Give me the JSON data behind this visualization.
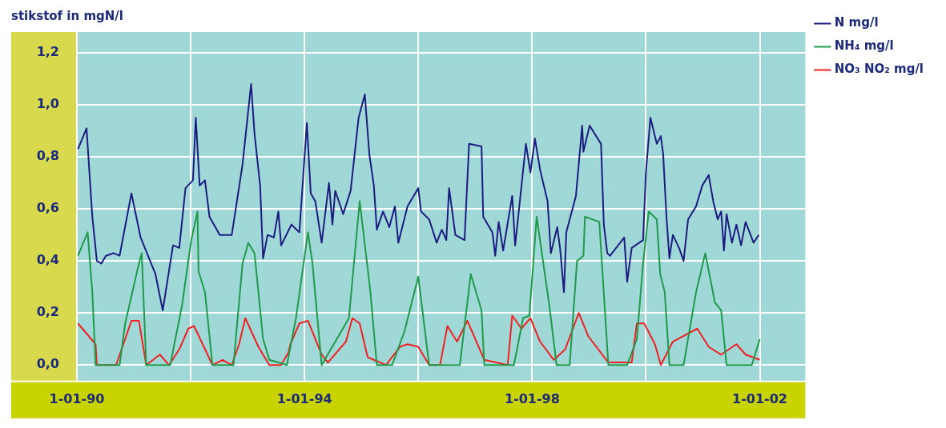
{
  "chart_data": {
    "type": "line",
    "ylabel": "stikstof in mgN/l",
    "xlim": [
      "1990-01-01",
      "2002-10-20"
    ],
    "ylim": [
      -0.06,
      1.28
    ],
    "xticks": [
      {
        "value": "1990-01-01",
        "label": "1-01-90"
      },
      {
        "value": "1992-01-01",
        "label": null
      },
      {
        "value": "1994-01-01",
        "label": "1-01-94"
      },
      {
        "value": "1996-01-01",
        "label": null
      },
      {
        "value": "1998-01-01",
        "label": "1-01-98"
      },
      {
        "value": "2000-01-01",
        "label": null
      },
      {
        "value": "2002-01-01",
        "label": "1-01-02"
      }
    ],
    "yticks": [
      {
        "value": 0,
        "label": "0,0"
      },
      {
        "value": 0.2,
        "label": "0,2"
      },
      {
        "value": 0.4,
        "label": "0,4"
      },
      {
        "value": 0.6,
        "label": "0,6"
      },
      {
        "value": 0.8,
        "label": "0,8"
      },
      {
        "value": 1.0,
        "label": "1,0"
      },
      {
        "value": 1.2,
        "label": "1,2"
      }
    ],
    "grid": true,
    "legend": "top right",
    "marker": "none",
    "line_style": "solid",
    "series": [
      {
        "name": "N mg/l",
        "color": "#1c1c80",
        "x": [
          "1990-01-08",
          "1990-03-04",
          "1990-04-10",
          "1990-05-09",
          "1990-06-07",
          "1990-07-06",
          "1990-08-23",
          "1990-10-02",
          "1990-12-17",
          "1991-02-14",
          "1991-05-20",
          "1991-07-06",
          "1991-09-10",
          "1991-10-20",
          "1991-11-29",
          "1992-01-16",
          "1992-02-03",
          "1992-02-28",
          "1992-04-02",
          "1992-05-01",
          "1992-07-06",
          "1992-09-21",
          "1992-11-29",
          "1993-01-23",
          "1993-02-14",
          "1993-03-22",
          "1993-04-10",
          "1993-05-09",
          "1993-06-18",
          "1993-07-17",
          "1993-08-04",
          "1993-10-09",
          "1993-11-29",
          "1994-01-16",
          "1994-02-10",
          "1994-03-11",
          "1994-04-21",
          "1994-06-07",
          "1994-06-29",
          "1994-07-17",
          "1994-09-06",
          "1994-10-24",
          "1994-12-14",
          "1995-01-23",
          "1995-02-21",
          "1995-03-22",
          "1995-04-10",
          "1995-05-20",
          "1995-06-29",
          "1995-08-04",
          "1995-08-26",
          "1995-10-24",
          "1996-01-01",
          "1996-01-19",
          "1996-03-11",
          "1996-04-28",
          "1996-05-31",
          "1996-06-29",
          "1996-07-17",
          "1996-08-26",
          "1996-10-24",
          "1996-11-22",
          "1997-02-10",
          "1997-02-21",
          "1997-04-21",
          "1997-05-09",
          "1997-05-31",
          "1997-06-29",
          "1997-08-26",
          "1997-09-14",
          "1997-11-22",
          "1997-12-21",
          "1998-01-19",
          "1998-02-21",
          "1998-04-10",
          "1998-05-01",
          "1998-06-11",
          "1998-06-29",
          "1998-07-24",
          "1998-08-08",
          "1998-10-09",
          "1998-11-18",
          "1998-11-26",
          "1999-01-05",
          "1999-03-19",
          "1999-04-06",
          "1999-04-28",
          "1999-05-16",
          "1999-08-15",
          "1999-09-03",
          "1999-10-02",
          "1999-12-14",
          "2000-01-01",
          "2000-01-30",
          "2000-03-11",
          "2000-04-06",
          "2000-04-21",
          "2000-05-12",
          "2000-05-31",
          "2000-06-22",
          "2000-08-01",
          "2000-08-30",
          "2000-09-28",
          "2000-11-18",
          "2000-12-28",
          "2001-02-07",
          "2001-03-08",
          "2001-04-06",
          "2001-04-28",
          "2001-05-16",
          "2001-06-02",
          "2001-07-06",
          "2001-08-04",
          "2001-09-03",
          "2001-10-02",
          "2001-11-22",
          "2001-12-25"
        ],
        "values": [
          0.83,
          0.91,
          0.57,
          0.4,
          0.39,
          0.42,
          0.43,
          0.42,
          0.66,
          0.49,
          0.35,
          0.21,
          0.46,
          0.45,
          0.68,
          0.71,
          0.95,
          0.69,
          0.71,
          0.57,
          0.5,
          0.5,
          0.77,
          1.08,
          0.89,
          0.69,
          0.41,
          0.5,
          0.49,
          0.59,
          0.46,
          0.54,
          0.51,
          0.93,
          0.66,
          0.63,
          0.47,
          0.7,
          0.54,
          0.67,
          0.58,
          0.67,
          0.95,
          1.04,
          0.81,
          0.69,
          0.52,
          0.59,
          0.53,
          0.61,
          0.47,
          0.61,
          0.68,
          0.59,
          0.56,
          0.47,
          0.52,
          0.48,
          0.68,
          0.5,
          0.48,
          0.85,
          0.84,
          0.57,
          0.51,
          0.42,
          0.55,
          0.44,
          0.65,
          0.46,
          0.85,
          0.74,
          0.87,
          0.75,
          0.63,
          0.43,
          0.53,
          0.45,
          0.28,
          0.51,
          0.65,
          0.92,
          0.82,
          0.92,
          0.85,
          0.54,
          0.43,
          0.42,
          0.49,
          0.32,
          0.45,
          0.48,
          0.74,
          0.95,
          0.85,
          0.88,
          0.81,
          0.57,
          0.41,
          0.5,
          0.45,
          0.4,
          0.56,
          0.61,
          0.69,
          0.73,
          0.63,
          0.56,
          0.59,
          0.44,
          0.58,
          0.47,
          0.54,
          0.46,
          0.55,
          0.47,
          0.5
        ]
      },
      {
        "name": "NH₄ mg/l",
        "color": "#1e9a4a",
        "x": [
          "1990-01-08",
          "1990-03-11",
          "1990-04-10",
          "1990-05-01",
          "1990-10-02",
          "1990-11-07",
          "1991-02-03",
          "1991-02-21",
          "1991-03-22",
          "1991-08-23",
          "1991-11-07",
          "1992-01-05",
          "1992-02-14",
          "1992-02-21",
          "1992-04-02",
          "1992-05-20",
          "1992-10-02",
          "1992-11-29",
          "1993-01-05",
          "1993-02-14",
          "1993-04-10",
          "1993-05-20",
          "1993-09-10",
          "1993-11-07",
          "1994-01-23",
          "1994-02-21",
          "1994-04-21",
          "1994-10-13",
          "1994-12-21",
          "1995-02-28",
          "1995-04-10",
          "1995-07-17",
          "1995-10-05",
          "1996-01-01",
          "1996-03-11",
          "1996-09-24",
          "1996-12-03",
          "1997-02-10",
          "1997-02-28",
          "1997-09-06",
          "1997-11-04",
          "1997-12-14",
          "1998-01-30",
          "1998-04-21",
          "1998-06-07",
          "1998-08-30",
          "1998-10-16",
          "1998-11-26",
          "1998-12-06",
          "1999-03-08",
          "1999-05-05",
          "1999-09-03",
          "1999-11-04",
          "1999-12-14",
          "2000-01-19",
          "2000-03-11",
          "2000-04-02",
          "2000-05-01",
          "2000-05-31",
          "2000-08-30",
          "2000-11-18",
          "2001-01-16",
          "2001-03-19",
          "2001-04-28",
          "2001-06-02",
          "2001-11-11",
          "2002-01-01"
        ],
        "values": [
          0.42,
          0.51,
          0.28,
          0.0,
          0.0,
          0.16,
          0.39,
          0.43,
          0.0,
          0.0,
          0.23,
          0.48,
          0.59,
          0.36,
          0.28,
          0.0,
          0.0,
          0.39,
          0.47,
          0.43,
          0.1,
          0.02,
          0.0,
          0.18,
          0.51,
          0.39,
          0.0,
          0.18,
          0.63,
          0.28,
          0.0,
          0.0,
          0.13,
          0.34,
          0.0,
          0.0,
          0.35,
          0.21,
          0.0,
          0.0,
          0.18,
          0.19,
          0.57,
          0.23,
          0.0,
          0.0,
          0.4,
          0.42,
          0.57,
          0.55,
          0.0,
          0.0,
          0.1,
          0.39,
          0.59,
          0.56,
          0.35,
          0.28,
          0.0,
          0.0,
          0.28,
          0.43,
          0.24,
          0.21,
          0.0,
          0.0,
          0.1
        ]
      },
      {
        "name": "NO₃ NO₂ mg/l",
        "color": "#ee2222",
        "x": [
          "1990-01-08",
          "1990-05-01",
          "1990-05-09",
          "1990-09-10",
          "1990-12-17",
          "1991-02-03",
          "1991-03-22",
          "1991-06-18",
          "1991-08-15",
          "1991-10-20",
          "1991-12-17",
          "1992-01-23",
          "1992-05-20",
          "1992-07-24",
          "1992-09-21",
          "1992-11-07",
          "1992-12-17",
          "1993-03-11",
          "1993-05-20",
          "1993-08-04",
          "1993-09-21",
          "1993-10-02",
          "1993-11-29",
          "1994-01-23",
          "1994-04-21",
          "1994-05-31",
          "1994-09-24",
          "1994-11-04",
          "1994-12-21",
          "1995-02-10",
          "1995-06-07",
          "1995-09-06",
          "1995-10-24",
          "1996-01-01",
          "1996-03-11",
          "1996-05-20",
          "1996-07-06",
          "1996-09-06",
          "1996-11-11",
          "1997-02-28",
          "1997-07-28",
          "1997-08-26",
          "1997-10-24",
          "1997-12-21",
          "1998-02-21",
          "1998-05-20",
          "1998-08-01",
          "1998-10-27",
          "1998-12-28",
          "1999-05-05",
          "1999-10-02",
          "1999-11-04",
          "1999-12-21",
          "2000-02-28",
          "2000-04-06",
          "2000-06-22",
          "2000-11-26",
          "2001-02-07",
          "2001-04-28",
          "2001-08-04",
          "2001-10-02",
          "2002-01-01"
        ],
        "values": [
          0.16,
          0.08,
          0.0,
          0.0,
          0.17,
          0.17,
          0.0,
          0.04,
          0.0,
          0.06,
          0.14,
          0.15,
          0.0,
          0.02,
          0.0,
          0.08,
          0.18,
          0.07,
          0.0,
          0.0,
          0.05,
          0.08,
          0.16,
          0.17,
          0.04,
          0.01,
          0.09,
          0.18,
          0.16,
          0.03,
          0.0,
          0.07,
          0.08,
          0.07,
          0.0,
          0.0,
          0.15,
          0.09,
          0.17,
          0.02,
          0.0,
          0.19,
          0.14,
          0.18,
          0.09,
          0.02,
          0.06,
          0.2,
          0.11,
          0.01,
          0.01,
          0.16,
          0.16,
          0.08,
          0.0,
          0.09,
          0.14,
          0.07,
          0.04,
          0.08,
          0.04,
          0.02
        ]
      }
    ]
  }
}
